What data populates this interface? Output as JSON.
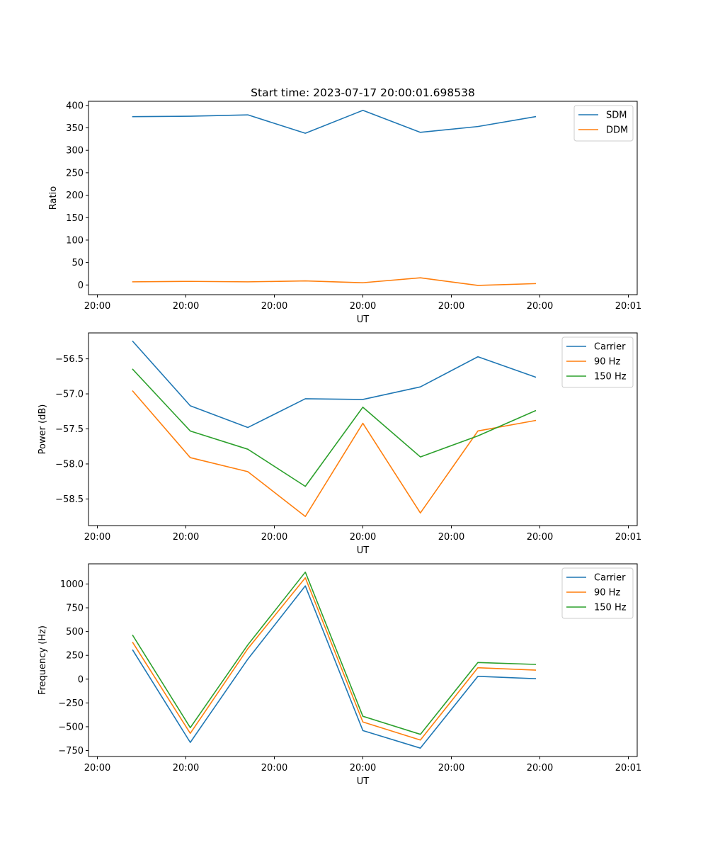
{
  "chart_data": [
    {
      "type": "line",
      "title": "Start time: 2023-07-17 20:00:01.698538",
      "xlabel": "UT",
      "ylabel": "Ratio",
      "xlim": [
        0,
        62
      ],
      "ylim": [
        -21.6,
        409.2
      ],
      "x": [
        5,
        11.5,
        18,
        24.5,
        31,
        37.5,
        44,
        50.5
      ],
      "x_ticks": [
        {
          "value": 1,
          "label": "20:00"
        },
        {
          "value": 11,
          "label": "20:00"
        },
        {
          "value": 21,
          "label": "20:00"
        },
        {
          "value": 31,
          "label": "20:00"
        },
        {
          "value": 41,
          "label": "20:00"
        },
        {
          "value": 51,
          "label": "20:00"
        },
        {
          "value": 61,
          "label": "20:01"
        }
      ],
      "y_ticks": [
        0,
        50,
        100,
        150,
        200,
        250,
        300,
        350,
        400
      ],
      "legend_position": "top-right",
      "series": [
        {
          "name": "SDM",
          "color": "#1f77b4",
          "values": [
            375,
            376,
            379,
            338,
            389,
            340,
            353,
            375
          ]
        },
        {
          "name": "DDM",
          "color": "#ff7f0e",
          "values": [
            7,
            8,
            7,
            9,
            5,
            16,
            -1,
            3
          ]
        }
      ]
    },
    {
      "type": "line",
      "title": "",
      "xlabel": "UT",
      "ylabel": "Power (dB)",
      "xlim": [
        0,
        62
      ],
      "ylim": [
        -58.88,
        -56.13
      ],
      "x": [
        5,
        11.5,
        18,
        24.5,
        31,
        37.5,
        44,
        50.5
      ],
      "x_ticks": [
        {
          "value": 1,
          "label": "20:00"
        },
        {
          "value": 11,
          "label": "20:00"
        },
        {
          "value": 21,
          "label": "20:00"
        },
        {
          "value": 31,
          "label": "20:00"
        },
        {
          "value": 41,
          "label": "20:00"
        },
        {
          "value": 51,
          "label": "20:00"
        },
        {
          "value": 61,
          "label": "20:01"
        }
      ],
      "y_ticks": [
        -58.5,
        -58.0,
        -57.5,
        -57.0,
        -56.5
      ],
      "y_tick_labels": [
        "−58.5",
        "−58.0",
        "−57.5",
        "−57.0",
        "−56.5"
      ],
      "legend_position": "top-right",
      "series": [
        {
          "name": "Carrier",
          "color": "#1f77b4",
          "values": [
            -56.25,
            -57.17,
            -57.48,
            -57.07,
            -57.08,
            -56.9,
            -56.47,
            -56.76
          ]
        },
        {
          "name": "90 Hz",
          "color": "#ff7f0e",
          "values": [
            -56.96,
            -57.91,
            -58.11,
            -58.75,
            -57.42,
            -58.7,
            -57.53,
            -57.38
          ]
        },
        {
          "name": "150 Hz",
          "color": "#2ca02c",
          "values": [
            -56.65,
            -57.53,
            -57.79,
            -58.32,
            -57.19,
            -57.9,
            -57.6,
            -57.24
          ]
        }
      ]
    },
    {
      "type": "line",
      "title": "",
      "xlabel": "UT",
      "ylabel": "Frequency (Hz)",
      "xlim": [
        0,
        62
      ],
      "ylim": [
        -813,
        1212
      ],
      "x": [
        5,
        11.5,
        18,
        24.5,
        31,
        37.5,
        44,
        50.5
      ],
      "x_ticks": [
        {
          "value": 1,
          "label": "20:00"
        },
        {
          "value": 11,
          "label": "20:00"
        },
        {
          "value": 21,
          "label": "20:00"
        },
        {
          "value": 31,
          "label": "20:00"
        },
        {
          "value": 41,
          "label": "20:00"
        },
        {
          "value": 51,
          "label": "20:00"
        },
        {
          "value": 61,
          "label": "20:01"
        }
      ],
      "y_ticks": [
        -750,
        -500,
        -250,
        0,
        250,
        500,
        750,
        1000
      ],
      "y_tick_labels": [
        "−750",
        "−500",
        "−250",
        "0",
        "250",
        "500",
        "750",
        "1000"
      ],
      "legend_position": "top-right",
      "series": [
        {
          "name": "Carrier",
          "color": "#1f77b4",
          "values": [
            305,
            -665,
            210,
            980,
            -540,
            -725,
            30,
            5
          ]
        },
        {
          "name": "90 Hz",
          "color": "#ff7f0e",
          "values": [
            385,
            -570,
            320,
            1065,
            -450,
            -640,
            120,
            95
          ]
        },
        {
          "name": "150 Hz",
          "color": "#2ca02c",
          "values": [
            460,
            -510,
            360,
            1125,
            -390,
            -580,
            175,
            155
          ]
        }
      ]
    }
  ]
}
